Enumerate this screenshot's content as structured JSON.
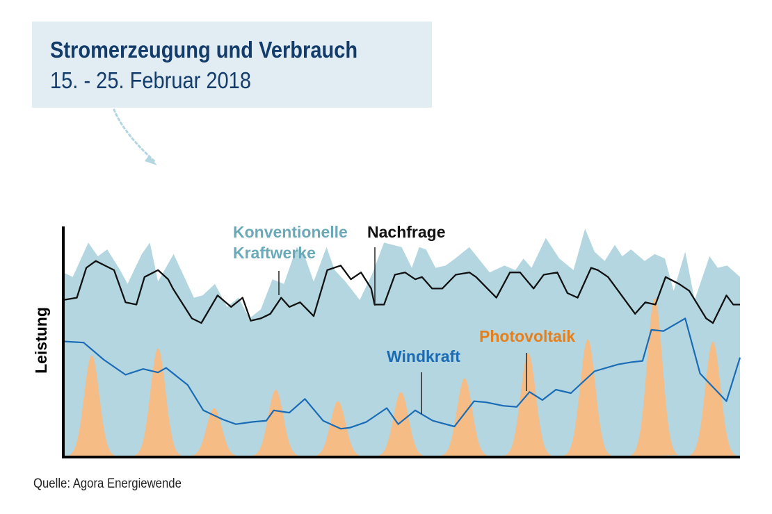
{
  "chart_data": {
    "type": "area",
    "title": "Stromerzeugung und Verbrauch",
    "subtitle": "15. - 25. Februar 2018",
    "ylabel": "Leistung",
    "xlabel": "",
    "source": "Quelle: Agora Energiewende",
    "x_range": [
      0,
      1
    ],
    "ylim": [
      0,
      100
    ],
    "grid": false,
    "legend": "inline-labels",
    "series": [
      {
        "name": "Konventionelle Kraftwerke",
        "label_lines": [
          "Konventionelle",
          "Kraftwerke"
        ],
        "type": "area",
        "color": "#b3d6e0",
        "label_color": "#6aaab8",
        "x": [
          0,
          0.014,
          0.037,
          0.051,
          0.065,
          0.084,
          0.095,
          0.116,
          0.128,
          0.14,
          0.163,
          0.193,
          0.206,
          0.224,
          0.242,
          0.259,
          0.275,
          0.292,
          0.309,
          0.326,
          0.345,
          0.358,
          0.37,
          0.389,
          0.401,
          0.417,
          0.438,
          0.456,
          0.474,
          0.5,
          0.515,
          0.526,
          0.536,
          0.55,
          0.565,
          0.579,
          0.6,
          0.63,
          0.652,
          0.668,
          0.68,
          0.692,
          0.713,
          0.733,
          0.754,
          0.771,
          0.785,
          0.8,
          0.815,
          0.826,
          0.839,
          0.859,
          0.874,
          0.889,
          0.902,
          0.919,
          0.933,
          0.955,
          0.967,
          0.981,
          1
        ],
        "y": [
          80,
          78,
          93,
          87,
          90,
          81,
          75,
          88,
          93,
          76,
          88,
          69,
          70,
          75,
          65,
          69,
          60,
          64,
          77,
          75,
          91,
          86,
          76,
          91,
          81,
          76,
          68,
          79,
          93,
          91,
          82,
          91,
          90,
          82,
          83,
          86,
          91,
          80,
          83,
          81,
          86,
          82,
          95,
          86,
          81,
          99,
          89,
          85,
          92,
          87,
          90,
          85,
          88,
          86,
          72,
          89,
          68,
          87,
          82,
          83,
          78
        ]
      },
      {
        "name": "Nachfrage",
        "type": "line",
        "color": "#111111",
        "x": [
          0,
          0.02,
          0.034,
          0.048,
          0.075,
          0.092,
          0.108,
          0.12,
          0.14,
          0.155,
          0.162,
          0.19,
          0.204,
          0.228,
          0.248,
          0.265,
          0.277,
          0.292,
          0.306,
          0.322,
          0.334,
          0.35,
          0.37,
          0.39,
          0.41,
          0.425,
          0.44,
          0.455,
          0.46,
          0.474,
          0.49,
          0.505,
          0.52,
          0.53,
          0.545,
          0.56,
          0.58,
          0.6,
          0.61,
          0.63,
          0.64,
          0.66,
          0.675,
          0.695,
          0.71,
          0.73,
          0.745,
          0.76,
          0.78,
          0.79,
          0.805,
          0.83,
          0.845,
          0.86,
          0.875,
          0.89,
          0.91,
          0.925,
          0.95,
          0.96,
          0.98,
          0.99,
          1
        ],
        "y": [
          68,
          69,
          82,
          85,
          81,
          67,
          66,
          78,
          81,
          77,
          73,
          60,
          58,
          70,
          65,
          69,
          59,
          60,
          62,
          69,
          65,
          67,
          61,
          81,
          83,
          77,
          80,
          73,
          66,
          66,
          79,
          80,
          77,
          78,
          73,
          73,
          79,
          80,
          78,
          72,
          69,
          80,
          80,
          73,
          79,
          80,
          71,
          69,
          82,
          81,
          78,
          68,
          62,
          67,
          66,
          78,
          75,
          72,
          60,
          58,
          70,
          66,
          66
        ]
      },
      {
        "name": "Windkraft",
        "type": "line",
        "color": "#1a6bb5",
        "x": [
          0,
          0.03,
          0.06,
          0.092,
          0.118,
          0.14,
          0.152,
          0.184,
          0.207,
          0.236,
          0.255,
          0.28,
          0.3,
          0.311,
          0.334,
          0.357,
          0.384,
          0.41,
          0.424,
          0.448,
          0.478,
          0.495,
          0.52,
          0.546,
          0.578,
          0.607,
          0.625,
          0.65,
          0.67,
          0.689,
          0.708,
          0.728,
          0.75,
          0.785,
          0.82,
          0.84,
          0.856,
          0.869,
          0.887,
          0.919,
          0.941,
          0.98,
          1
        ],
        "y": [
          50,
          49.5,
          42,
          35.5,
          38,
          36.5,
          38.5,
          31,
          20,
          16,
          14,
          15,
          15.5,
          20,
          19,
          25,
          15.5,
          12,
          12.5,
          15,
          21,
          14,
          20,
          15.5,
          13,
          24,
          23.5,
          22,
          21.5,
          28,
          24.5,
          29,
          27.5,
          37,
          40,
          41,
          41.5,
          55,
          54.5,
          60,
          36,
          24,
          43
        ]
      },
      {
        "name": "Photovoltaik",
        "type": "area",
        "color": "#f5bc85",
        "label_color": "#e57f1c",
        "peaks": [
          {
            "x": 0.042,
            "y": 44
          },
          {
            "x": 0.14,
            "y": 47
          },
          {
            "x": 0.223,
            "y": 21
          },
          {
            "x": 0.314,
            "y": 29
          },
          {
            "x": 0.406,
            "y": 24
          },
          {
            "x": 0.499,
            "y": 28
          },
          {
            "x": 0.593,
            "y": 34
          },
          {
            "x": 0.687,
            "y": 45
          },
          {
            "x": 0.775,
            "y": 51
          },
          {
            "x": 0.874,
            "y": 69
          },
          {
            "x": 0.96,
            "y": 50
          }
        ]
      }
    ]
  }
}
